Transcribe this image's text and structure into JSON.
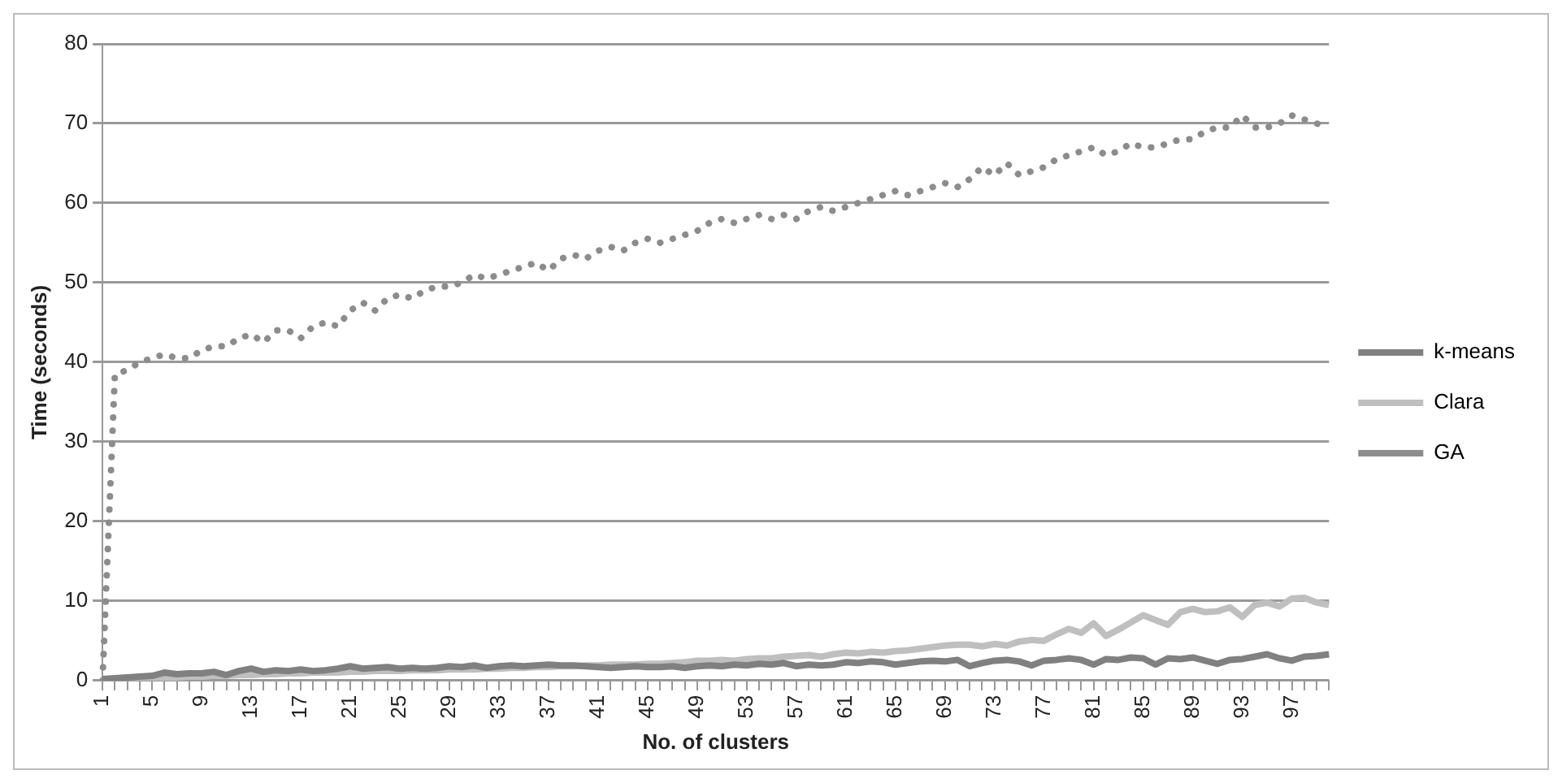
{
  "chart_data": {
    "type": "line",
    "xlabel": "No. of clusters",
    "ylabel": "Time (seconds)",
    "categories": [
      "1",
      null,
      null,
      null,
      "5",
      null,
      null,
      null,
      "9",
      null,
      null,
      null,
      "13",
      null,
      null,
      null,
      "17",
      null,
      null,
      null,
      "21",
      null,
      null,
      null,
      "25",
      null,
      null,
      null,
      "29",
      null,
      null,
      null,
      "33",
      null,
      null,
      null,
      "37",
      null,
      null,
      null,
      "41",
      null,
      null,
      null,
      "45",
      null,
      null,
      null,
      "49",
      null,
      null,
      null,
      "53",
      null,
      null,
      null,
      "57",
      null,
      null,
      null,
      "61",
      null,
      null,
      null,
      "65",
      null,
      null,
      null,
      "69",
      null,
      null,
      null,
      "73",
      null,
      null,
      null,
      "77",
      null,
      null,
      null,
      "81",
      null,
      null,
      null,
      "85",
      null,
      null,
      null,
      "89",
      null,
      null,
      null,
      "93",
      null,
      null,
      null,
      "97",
      null,
      null,
      null
    ],
    "series": [
      {
        "name": "k-means",
        "color": "#808080",
        "line_style": "solid",
        "values": [
          0.2,
          0.3,
          0.4,
          0.5,
          0.6,
          1.0,
          0.8,
          0.9,
          0.9,
          1.1,
          0.7,
          1.2,
          1.5,
          1.1,
          1.3,
          1.2,
          1.4,
          1.2,
          1.3,
          1.5,
          1.8,
          1.5,
          1.6,
          1.7,
          1.5,
          1.6,
          1.5,
          1.6,
          1.8,
          1.7,
          1.9,
          1.6,
          1.8,
          1.9,
          1.8,
          1.9,
          2.0,
          1.9,
          1.9,
          1.8,
          1.7,
          1.6,
          1.7,
          1.8,
          1.7,
          1.7,
          1.8,
          1.6,
          1.8,
          1.9,
          1.8,
          2.0,
          1.9,
          2.1,
          2.0,
          2.2,
          1.8,
          2.0,
          1.9,
          2.0,
          2.3,
          2.2,
          2.4,
          2.3,
          2.0,
          2.2,
          2.4,
          2.5,
          2.4,
          2.6,
          1.8,
          2.2,
          2.5,
          2.6,
          2.4,
          1.9,
          2.5,
          2.6,
          2.8,
          2.6,
          2.0,
          2.7,
          2.6,
          2.9,
          2.8,
          2.0,
          2.8,
          2.7,
          2.9,
          2.5,
          2.1,
          2.6,
          2.7,
          3.0,
          3.3,
          2.8,
          2.5,
          3.0,
          3.1,
          3.3
        ]
      },
      {
        "name": "Clara",
        "color": "#bfbfbf",
        "line_style": "solid",
        "values": [
          0,
          0.1,
          0.2,
          0.3,
          0.3,
          0.4,
          0.4,
          0.5,
          0.5,
          0.6,
          0.6,
          0.7,
          0.7,
          0.8,
          0.8,
          0.9,
          0.9,
          1.0,
          1.0,
          1.0,
          1.1,
          1.1,
          1.2,
          1.2,
          1.2,
          1.3,
          1.3,
          1.3,
          1.4,
          1.4,
          1.4,
          1.5,
          1.5,
          1.6,
          1.6,
          1.7,
          1.7,
          1.8,
          1.8,
          1.9,
          1.9,
          2.0,
          2.0,
          2.0,
          2.1,
          2.1,
          2.2,
          2.3,
          2.5,
          2.5,
          2.6,
          2.5,
          2.7,
          2.8,
          2.8,
          3.0,
          3.1,
          3.2,
          3.0,
          3.3,
          3.5,
          3.4,
          3.6,
          3.5,
          3.7,
          3.8,
          4.0,
          4.2,
          4.4,
          4.5,
          4.5,
          4.3,
          4.6,
          4.4,
          4.9,
          5.1,
          5.0,
          5.8,
          6.5,
          6.0,
          7.2,
          5.6,
          6.4,
          7.3,
          8.2,
          7.6,
          7.0,
          8.6,
          9.0,
          8.6,
          8.7,
          9.2,
          8.0,
          9.5,
          9.8,
          9.3,
          10.3,
          10.4,
          9.8,
          9.5
        ]
      },
      {
        "name": "GA",
        "color": "#8c8c8c",
        "line_style": "dotted",
        "values": [
          0,
          38.5,
          39,
          40,
          40.5,
          41,
          40.5,
          40.5,
          41.5,
          42,
          42,
          43,
          43.5,
          42.5,
          44,
          44,
          43,
          44.5,
          45,
          44.5,
          46.5,
          47.5,
          46.5,
          48,
          48.5,
          48,
          49,
          49.5,
          49.5,
          50,
          51,
          50.5,
          51,
          51.5,
          52,
          52.5,
          51.5,
          53,
          53.5,
          53,
          54,
          54.5,
          54,
          55,
          55.5,
          55,
          55.5,
          56,
          56.5,
          57.5,
          58,
          57.5,
          58,
          58.5,
          58,
          58.5,
          58,
          59,
          59.5,
          59,
          59.5,
          60,
          60.5,
          61,
          61.5,
          61,
          61.5,
          62,
          62.5,
          62,
          63,
          64.5,
          63.5,
          65,
          63.5,
          64,
          64.5,
          65.5,
          66,
          66.5,
          67,
          66,
          66.5,
          67.5,
          67,
          67,
          67.5,
          68,
          68,
          69,
          69.5,
          69.5,
          71,
          69.5,
          69.5,
          70,
          71,
          70.5,
          70,
          69.5
        ]
      }
    ],
    "ylim": [
      0,
      80
    ],
    "yticks": [
      0,
      10,
      20,
      30,
      40,
      50,
      60,
      70,
      80
    ],
    "grid": "y",
    "legend": "right",
    "marker": "none"
  }
}
